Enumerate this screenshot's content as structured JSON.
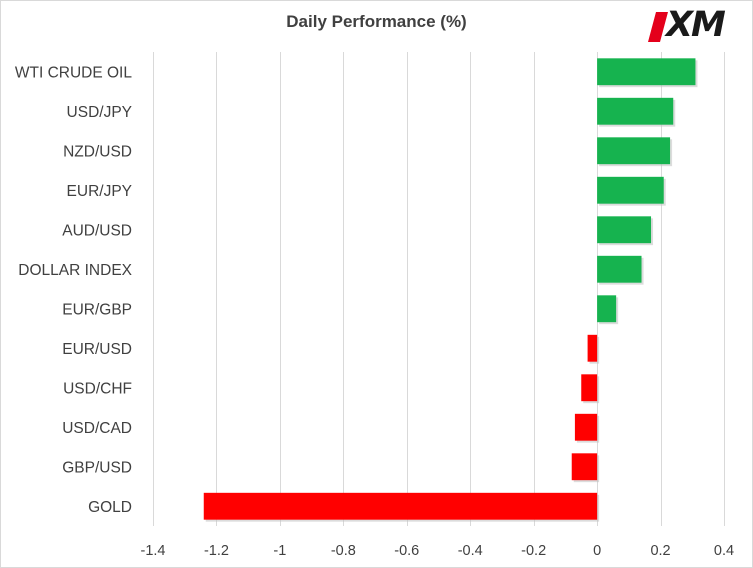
{
  "chart_data": {
    "type": "bar",
    "orientation": "horizontal",
    "title": "Daily Performance  (%)",
    "categories": [
      "WTI CRUDE OIL",
      "USD/JPY",
      "NZD/USD",
      "EUR/JPY",
      "AUD/USD",
      "DOLLAR INDEX",
      "EUR/GBP",
      "EUR/USD",
      "USD/CHF",
      "USD/CAD",
      "GBP/USD",
      "GOLD"
    ],
    "values": [
      0.31,
      0.24,
      0.23,
      0.21,
      0.17,
      0.14,
      0.06,
      -0.03,
      -0.05,
      -0.07,
      -0.08,
      -1.24
    ],
    "xlim": [
      -1.4,
      0.4
    ],
    "xticks": [
      -1.4,
      -1.2,
      -1.0,
      -0.8,
      -0.6,
      -0.4,
      -0.2,
      0,
      0.2,
      0.4
    ],
    "xtick_labels": [
      "-1.4",
      "-1.2",
      "-1",
      "-0.8",
      "-0.6",
      "-0.4",
      "-0.2",
      "0",
      "0.2",
      "0.4"
    ],
    "grid": "vertical",
    "legend": "none",
    "colors": {
      "positive": "#16b34f",
      "negative": "#ff0000",
      "grid": "#d9d9d9",
      "text": "#404040"
    }
  },
  "logo": {
    "text": "XM",
    "accent_color": "#e4001b"
  }
}
